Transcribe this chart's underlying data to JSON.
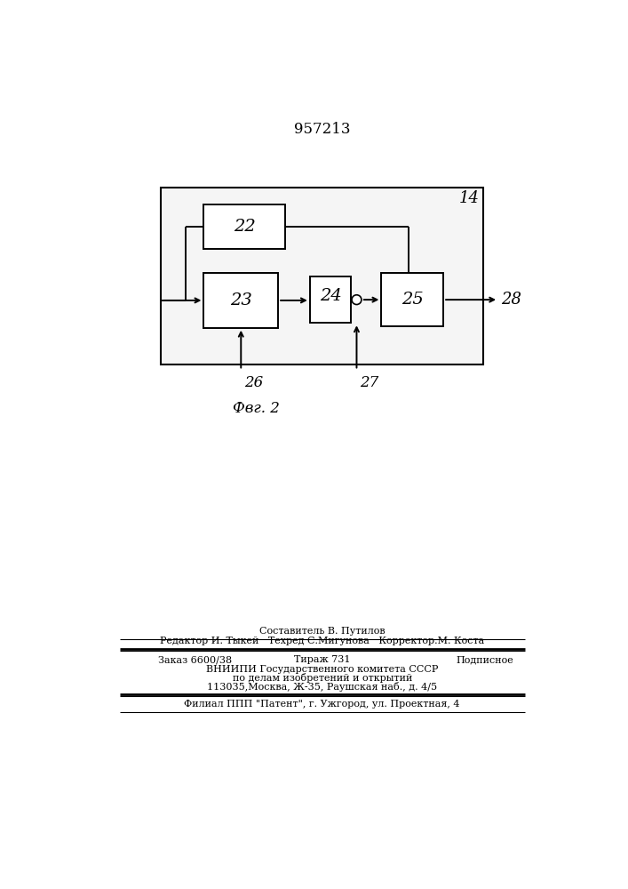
{
  "title": "957213",
  "bg_color": "#e8e8e8",
  "fig_label": "14",
  "block_labels": [
    "22",
    "23",
    "24",
    "25"
  ],
  "arrow_labels": [
    "26",
    "27",
    "28"
  ],
  "fig_caption": "Фвг. 2",
  "footer_line1": "Составитель В. Путилов",
  "footer_line2": "Редактор И. Тыкей   Техред С.Мигунова   Корректор.М. Коста",
  "footer_col1_3": "Заказ 6600/38",
  "footer_col2_3": "Тираж 731",
  "footer_col3_3": "Подписное",
  "footer_line4": "ВНИИПИ Государственного комитета СССР",
  "footer_line5": "по делам изобретений и открытий",
  "footer_line6": "113035,Москва, Ж-35, Раушская наб., д. 4/5",
  "footer_line7": "Филиал ППП \"Патент\", г. Ужгород, ул. Проектная, 4"
}
